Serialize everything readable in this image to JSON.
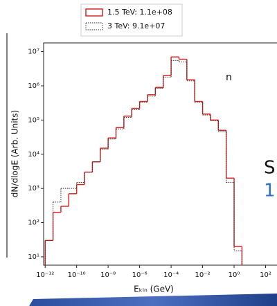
{
  "chart_data": {
    "type": "histogram",
    "xlabel": "Eₖᵢₙ (GeV)",
    "ylabel": "dN/dlogE (Arb. Units)",
    "annotation": "n",
    "xscale": "log",
    "yscale": "log",
    "xlim": [
      8e-13,
      480
    ],
    "ylim": [
      5.7,
      18000000
    ],
    "xticks": [
      {
        "value": 1e-12,
        "label": "10⁻¹²"
      },
      {
        "value": 1e-10,
        "label": "10⁻¹⁰"
      },
      {
        "value": 1e-08,
        "label": "10⁻⁸"
      },
      {
        "value": 1e-06,
        "label": "10⁻⁶"
      },
      {
        "value": 0.0001,
        "label": "10⁻⁴"
      },
      {
        "value": 0.01,
        "label": "10⁻²"
      },
      {
        "value": 1,
        "label": "10⁰"
      },
      {
        "value": 100,
        "label": "10²"
      }
    ],
    "yticks": [
      {
        "value": 10,
        "label": "10¹"
      },
      {
        "value": 100,
        "label": "10²"
      },
      {
        "value": 1000,
        "label": "10³"
      },
      {
        "value": 10000,
        "label": "10⁴"
      },
      {
        "value": 100000,
        "label": "10⁵"
      },
      {
        "value": 1000000,
        "label": "10⁶"
      },
      {
        "value": 10000000,
        "label": "10⁷"
      }
    ],
    "bins": [
      1e-12,
      3.16e-12,
      1e-11,
      3.16e-11,
      1e-10,
      3.16e-10,
      1e-09,
      3.16e-09,
      1e-08,
      3.16e-08,
      1e-07,
      3.16e-07,
      1e-06,
      3.16e-06,
      1e-05,
      3.16e-05,
      0.0001,
      0.000316,
      0.001,
      0.00316,
      0.01,
      0.0316,
      0.1,
      0.316,
      1,
      3.16
    ],
    "legend_position": "top",
    "series": [
      {
        "name": "1.5 TeV: 1.1e+08",
        "color": "#d62728",
        "linestyle": "solid",
        "values": [
          30,
          200,
          300,
          700,
          1300,
          3000,
          6000,
          15000,
          30000,
          60000,
          130000,
          220000,
          350000,
          550000,
          900000,
          2000000,
          7000000,
          6000000,
          1500000,
          350000,
          150000,
          100000,
          50000,
          2000,
          20
        ]
      },
      {
        "name": "3 TeV: 9.1e+07",
        "color": "#333333",
        "linestyle": "dotted",
        "values": [
          30,
          400,
          1000,
          1000,
          1500,
          3000,
          6000,
          14000,
          28000,
          55000,
          120000,
          200000,
          330000,
          500000,
          850000,
          1800000,
          5500000,
          5000000,
          1400000,
          330000,
          140000,
          95000,
          45000,
          1500,
          15
        ]
      }
    ]
  },
  "background_texts": {
    "letter": "S",
    "number": "1"
  }
}
